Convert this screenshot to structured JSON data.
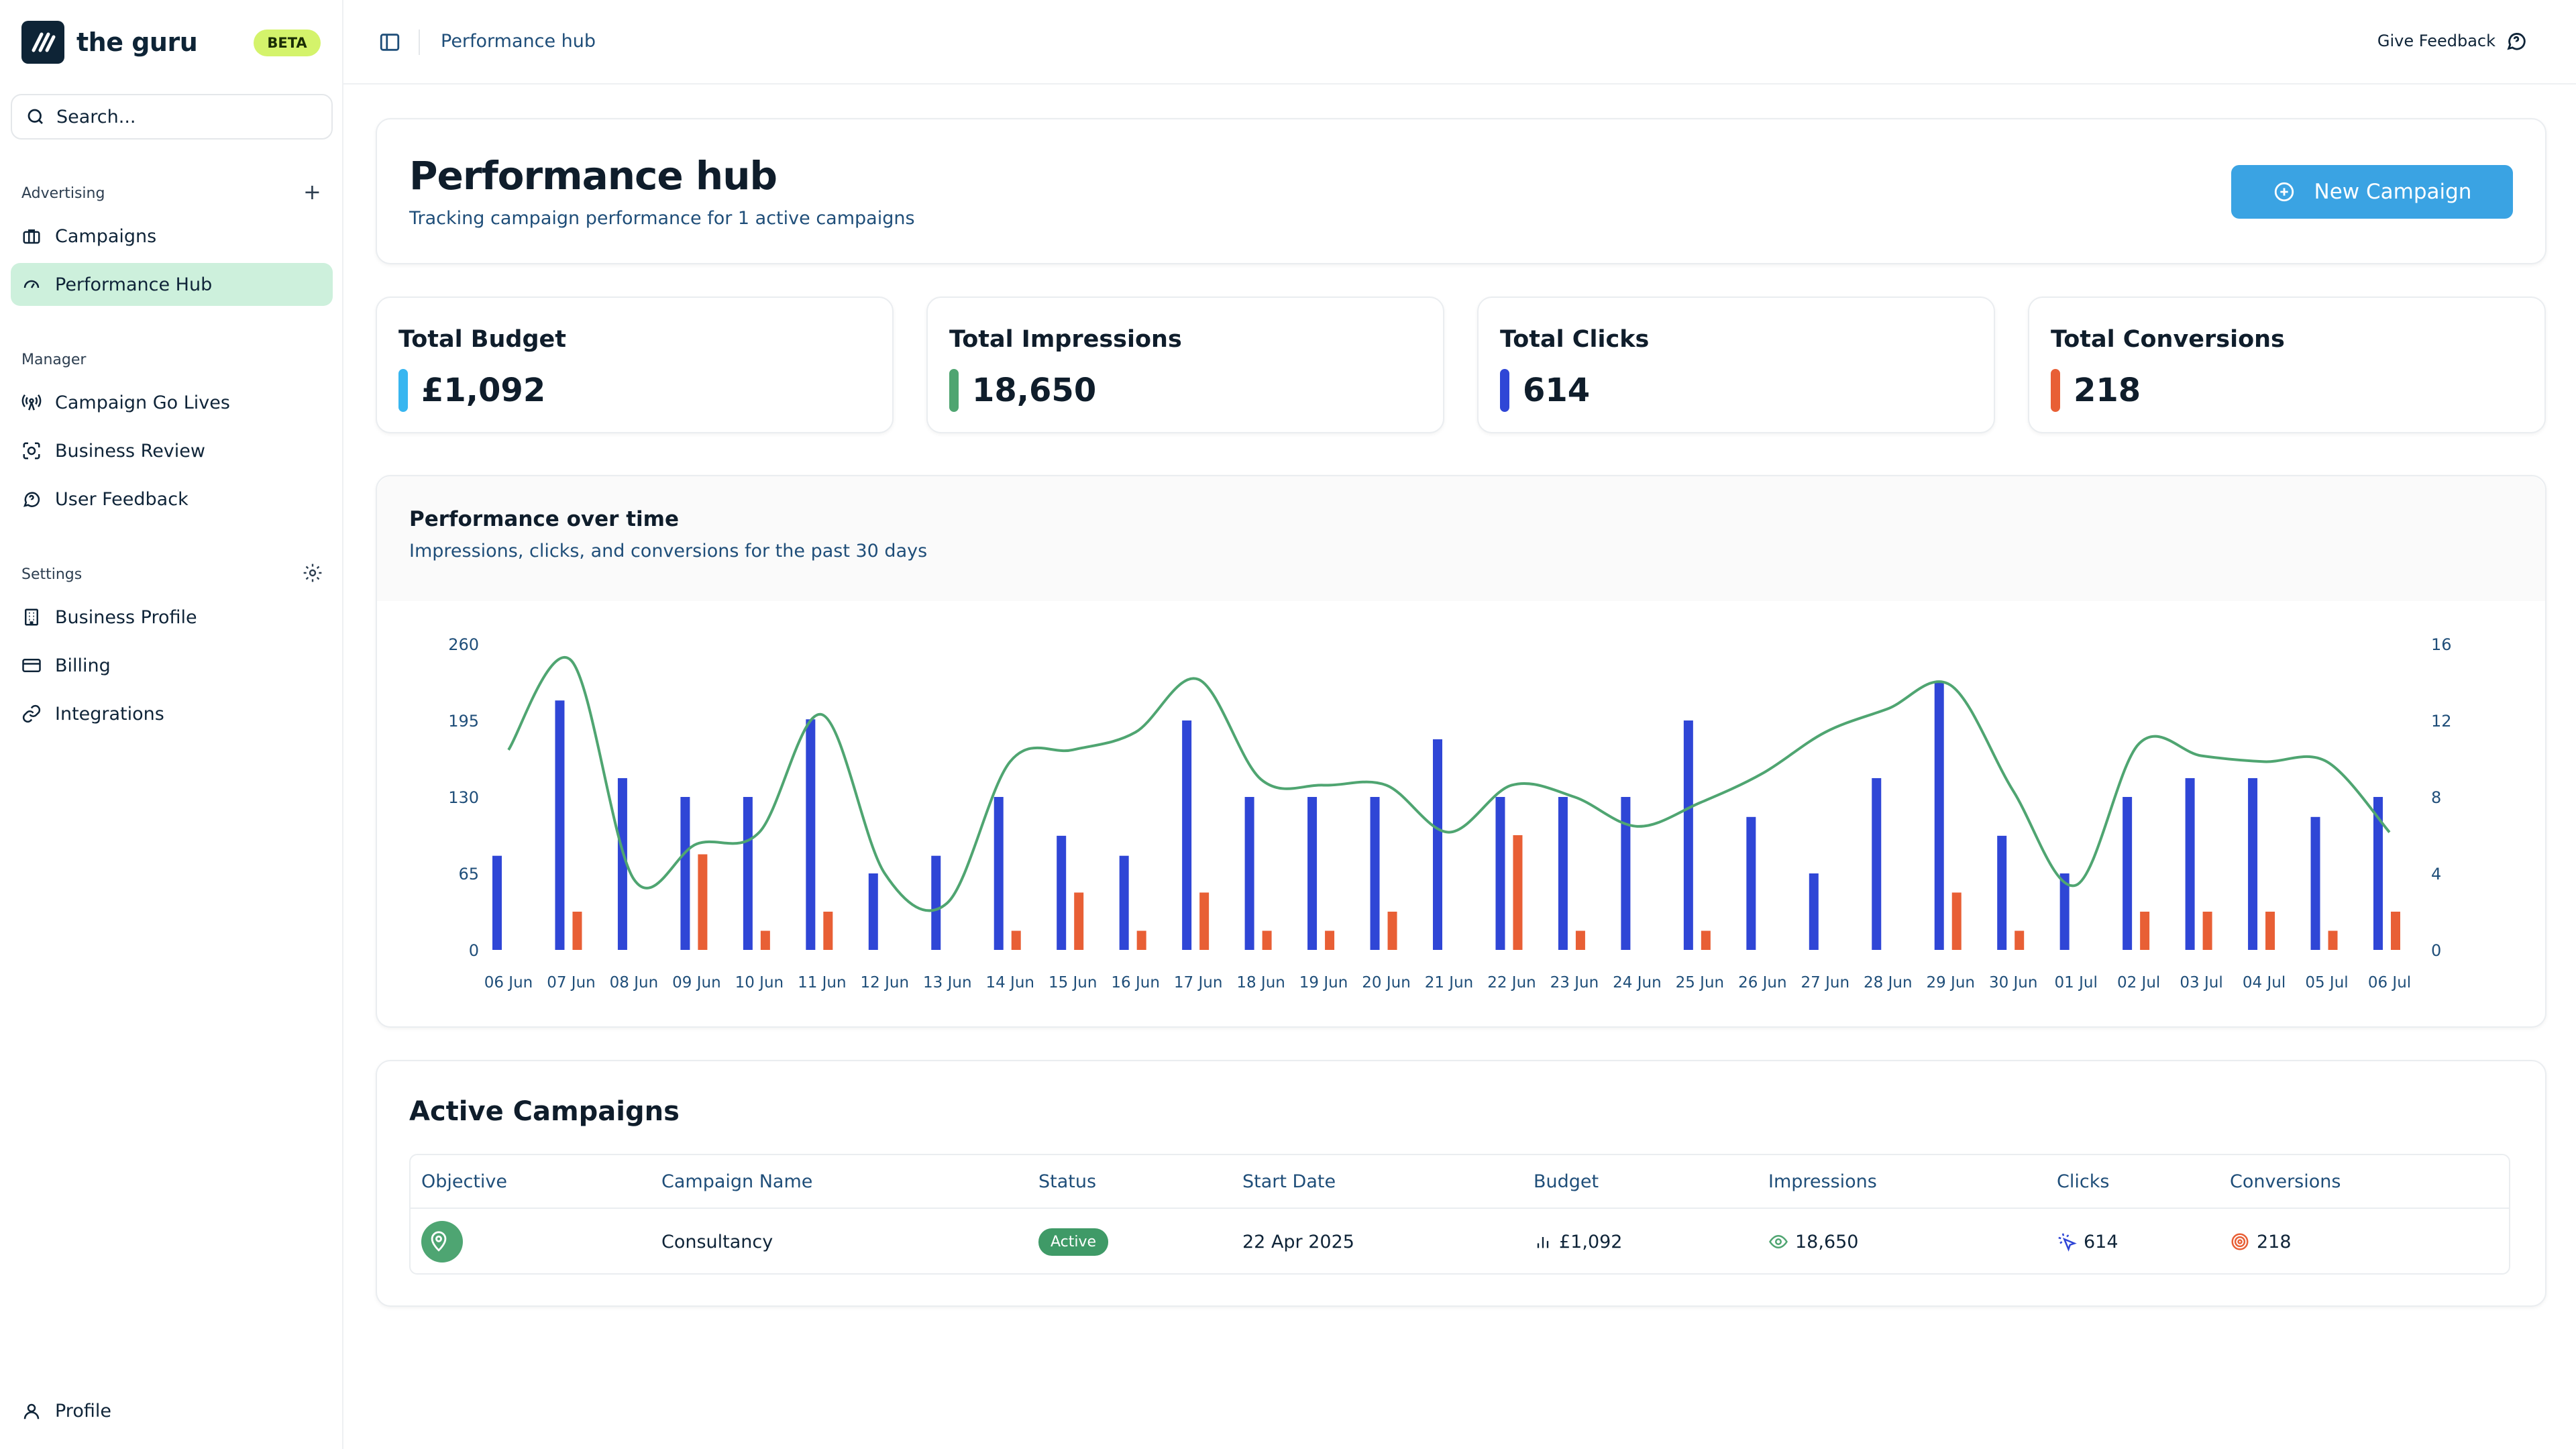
{
  "app": {
    "brand_name": "the guru",
    "beta_badge": "BETA"
  },
  "sidebar": {
    "search_placeholder": "Search...",
    "sections": {
      "advertising": "Advertising",
      "manager": "Manager",
      "settings": "Settings"
    },
    "items": [
      {
        "label": "Campaigns",
        "icon": "briefcase-icon"
      },
      {
        "label": "Performance Hub",
        "icon": "gauge-icon",
        "active": true
      },
      {
        "label": "Campaign Go Lives",
        "icon": "radio-tower-icon"
      },
      {
        "label": "Business Review",
        "icon": "scan-face-icon"
      },
      {
        "label": "User Feedback",
        "icon": "message-circle-question-icon"
      },
      {
        "label": "Business Profile",
        "icon": "building-icon"
      },
      {
        "label": "Billing",
        "icon": "credit-card-icon"
      },
      {
        "label": "Integrations",
        "icon": "link-icon"
      }
    ],
    "profile_label": "Profile"
  },
  "topbar": {
    "breadcrumb": "Performance hub",
    "feedback_label": "Give Feedback"
  },
  "hero": {
    "title": "Performance hub",
    "subtitle": "Tracking campaign performance for 1 active campaigns",
    "new_campaign_label": "New Campaign"
  },
  "stats": [
    {
      "label": "Total Budget",
      "value": "£1,092",
      "color": "#38b6f0"
    },
    {
      "label": "Total Impressions",
      "value": "18,650",
      "color": "#4fa571"
    },
    {
      "label": "Total Clicks",
      "value": "614",
      "color": "#2f46d6"
    },
    {
      "label": "Total Conversions",
      "value": "218",
      "color": "#e85f35"
    }
  ],
  "chart": {
    "title": "Performance over time",
    "subtitle": "Impressions, clicks, and conversions for the past 30 days"
  },
  "colors": {
    "clicks": "#2f46d6",
    "conversions": "#e85f35",
    "impressions": "#4fa571",
    "accent": "#3aa3e3"
  },
  "chart_data": {
    "type": "bar",
    "categories": [
      "06 Jun",
      "07 Jun",
      "08 Jun",
      "09 Jun",
      "10 Jun",
      "11 Jun",
      "12 Jun",
      "13 Jun",
      "14 Jun",
      "15 Jun",
      "16 Jun",
      "17 Jun",
      "18 Jun",
      "19 Jun",
      "20 Jun",
      "21 Jun",
      "22 Jun",
      "23 Jun",
      "24 Jun",
      "25 Jun",
      "26 Jun",
      "27 Jun",
      "28 Jun",
      "29 Jun",
      "30 Jun",
      "01 Jul",
      "02 Jul",
      "03 Jul",
      "04 Jul",
      "05 Jul",
      "06 Jul"
    ],
    "y_left_ticks": [
      "0",
      "65",
      "130",
      "195",
      "260"
    ],
    "y_right_ticks": [
      "0",
      "4",
      "8",
      "12",
      "16"
    ],
    "ylim_left": [
      0,
      260
    ],
    "ylim_right": [
      0,
      16
    ],
    "series": [
      {
        "type": "bar",
        "axis": "left",
        "values": [
          80,
          212,
          146,
          130,
          130,
          196,
          65,
          80,
          130,
          97,
          80,
          195,
          130,
          130,
          130,
          179,
          130,
          130,
          130,
          195,
          113,
          65,
          146,
          228,
          97,
          65,
          130,
          146,
          146,
          113,
          130
        ]
      },
      {
        "type": "bar",
        "axis": "right",
        "values": [
          0,
          2,
          0,
          5,
          1,
          2,
          0,
          0,
          1,
          3,
          1,
          3,
          1,
          1,
          2,
          0,
          6,
          1,
          0,
          1,
          0,
          0,
          0,
          3,
          1,
          0,
          2,
          2,
          2,
          1,
          2
        ]
      },
      {
        "type": "line",
        "axis": "left",
        "values": [
          170,
          246,
          60,
          90,
          100,
          200,
          65,
          40,
          160,
          170,
          185,
          230,
          145,
          140,
          140,
          100,
          140,
          130,
          105,
          125,
          150,
          185,
          205,
          225,
          135,
          55,
          175,
          165,
          160,
          160,
          100
        ]
      }
    ]
  },
  "table": {
    "title": "Active Campaigns",
    "columns": [
      "Objective",
      "Campaign Name",
      "Status",
      "Start Date",
      "Budget",
      "Impressions",
      "Clicks",
      "Conversions"
    ],
    "rows": [
      {
        "objective_icon": "map-pin-icon",
        "name": "Consultancy",
        "status": "Active",
        "start_date": "22 Apr 2025",
        "budget": "£1,092",
        "impressions": "18,650",
        "clicks": "614",
        "conversions": "218"
      }
    ]
  }
}
